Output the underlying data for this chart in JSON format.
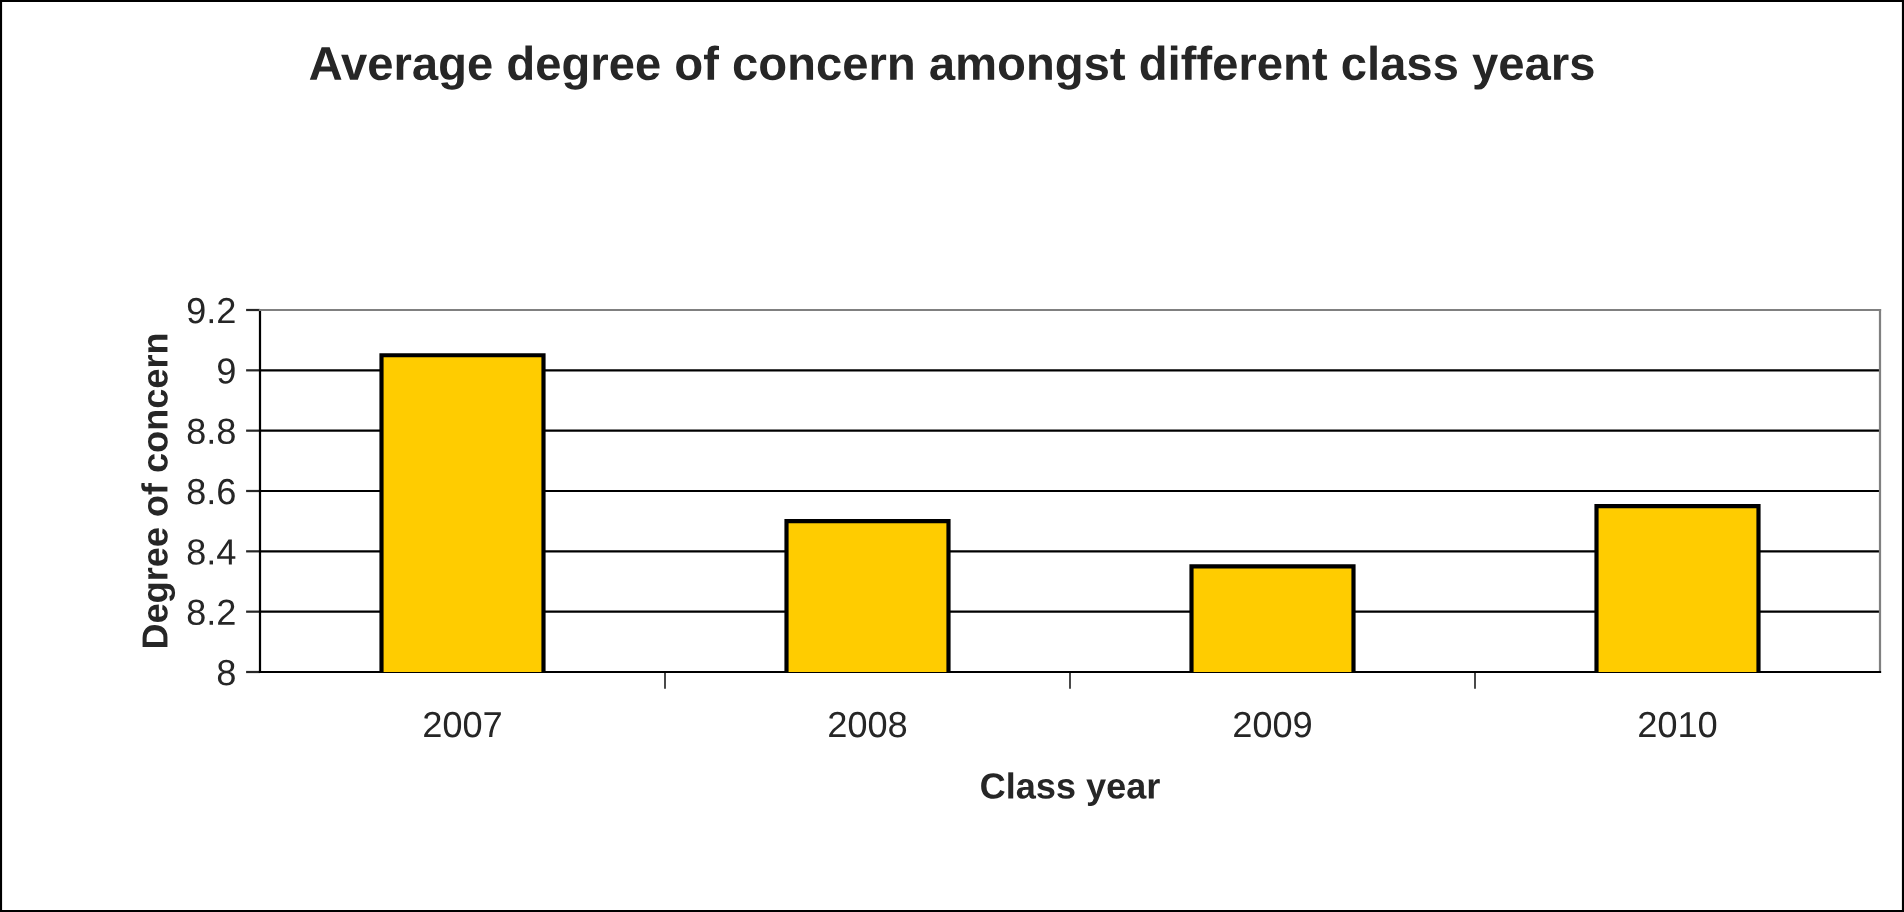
{
  "chart_data": {
    "type": "bar",
    "title": "Average degree of concern amongst different class years",
    "xlabel": "Class year",
    "ylabel": "Degree of concern",
    "categories": [
      "2007",
      "2008",
      "2009",
      "2010"
    ],
    "values": [
      9.05,
      8.5,
      8.35,
      8.55
    ],
    "color": "#ffcc00",
    "ylim": [
      8,
      9.2
    ],
    "yticks": [
      8,
      8.2,
      8.4,
      8.6,
      8.8,
      9,
      9.2
    ],
    "grid": "y",
    "legend": false
  }
}
